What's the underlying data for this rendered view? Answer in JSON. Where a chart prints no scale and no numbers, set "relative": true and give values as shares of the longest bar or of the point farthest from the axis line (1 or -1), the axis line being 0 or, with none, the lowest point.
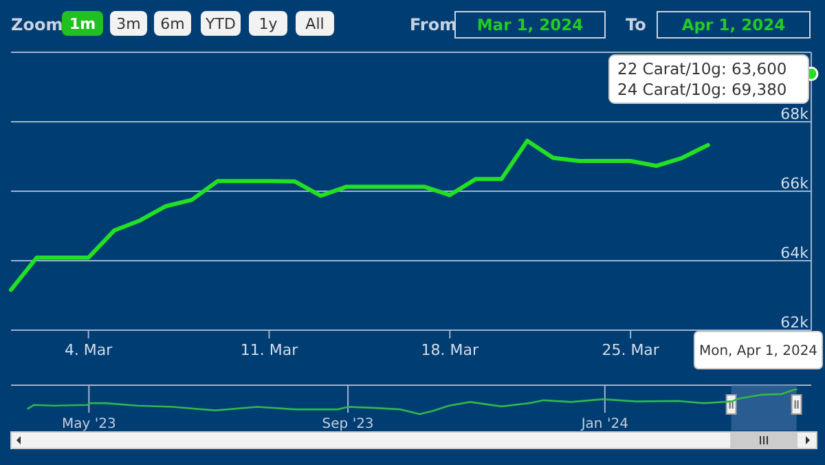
{
  "chart_data": [
    {
      "type": "line",
      "xlim": [
        "2024-03-01",
        "2024-04-01"
      ],
      "ylim": [
        62000,
        70000
      ],
      "x": [
        "2024-03-01",
        "2024-03-02",
        "2024-03-03",
        "2024-03-04",
        "2024-03-05",
        "2024-03-06",
        "2024-03-07",
        "2024-03-08",
        "2024-03-09",
        "2024-03-10",
        "2024-03-11",
        "2024-03-12",
        "2024-03-13",
        "2024-03-14",
        "2024-03-15",
        "2024-03-16",
        "2024-03-17",
        "2024-03-18",
        "2024-03-19",
        "2024-03-20",
        "2024-03-21",
        "2024-03-22",
        "2024-03-23",
        "2024-03-24",
        "2024-03-25",
        "2024-03-26",
        "2024-03-27",
        "2024-03-28",
        "2024-03-29",
        "2024-03-30",
        "2024-03-31",
        "2024-04-01"
      ],
      "series": [
        {
          "color": "#22e022",
          "values": [
            63160,
            64090,
            64090,
            64090,
            64870,
            65160,
            65570,
            65750,
            66290,
            66290,
            66290,
            66280,
            65870,
            66130,
            66130,
            66130,
            66130,
            65890,
            66350,
            66350,
            67450,
            66960,
            66870,
            66870,
            66870,
            66730,
            66960,
            67330,
            null,
            null,
            null,
            69380
          ]
        }
      ],
      "xticks": [
        {
          "value": "2024-03-04",
          "label": "4. Mar"
        },
        {
          "value": "2024-03-11",
          "label": "11. Mar"
        },
        {
          "value": "2024-03-18",
          "label": "18. Mar"
        },
        {
          "value": "2024-03-25",
          "label": "25. Mar"
        }
      ],
      "yticks": [
        {
          "value": 62000,
          "label": "62k"
        },
        {
          "value": 64000,
          "label": "64k"
        },
        {
          "value": 66000,
          "label": "66k"
        },
        {
          "value": 68000,
          "label": "68k"
        }
      ],
      "grid": "y",
      "legend": false,
      "marker": "none",
      "line_style": "solid",
      "annotations": [
        "Zoom",
        "1m",
        "3m",
        "6m",
        "YTD",
        "1y",
        "All",
        "From",
        "Mar 1, 2024",
        "To",
        "Apr 1, 2024",
        "22 Carat/10g: 63,600",
        {
          "text": "24 Carat/10g: 69,380",
          "x": "2024-04-01",
          "y": 69380
        },
        "Mon, Apr 1, 2024"
      ]
    },
    {
      "type": "line",
      "relative": true,
      "xlim": [
        "2023-03-25",
        "2024-04-08"
      ],
      "x": [
        "2023-04-02",
        "2023-04-05",
        "2023-04-14",
        "2023-04-30",
        "2023-05-02",
        "2023-05-09",
        "2023-05-24",
        "2023-06-10",
        "2023-06-30",
        "2023-07-20",
        "2023-08-07",
        "2023-08-27",
        "2023-09-01",
        "2023-09-11",
        "2023-09-26",
        "2023-10-05",
        "2023-10-11",
        "2023-10-19",
        "2023-10-29",
        "2023-11-13",
        "2023-11-26",
        "2023-12-03",
        "2023-12-16",
        "2023-12-31",
        "2024-01-16",
        "2024-02-05",
        "2024-02-17",
        "2024-03-01",
        "2024-03-05",
        "2024-03-15",
        "2024-03-25",
        "2024-03-30",
        "2024-04-01"
      ],
      "series": [
        {
          "color": "#2fb84a",
          "values": [
            0.22,
            0.37,
            0.34,
            0.37,
            0.44,
            0.44,
            0.34,
            0.29,
            0.15,
            0.29,
            0.19,
            0.19,
            0.29,
            0.26,
            0.19,
            0,
            0.12,
            0.34,
            0.49,
            0.31,
            0.44,
            0.56,
            0.49,
            0.6,
            0.51,
            0.53,
            0.44,
            0.51,
            0.63,
            0.78,
            0.81,
            0.96,
            1
          ]
        }
      ],
      "xticks": [
        {
          "value": "2023-05-01",
          "label": "May '23"
        },
        {
          "value": "2023-09-01",
          "label": "Sep '23"
        },
        {
          "value": "2024-01-01",
          "label": "Jan '24"
        }
      ],
      "grid": "x",
      "legend": false,
      "marker": "none",
      "bands": [
        {
          "axis": "x",
          "from": "2024-03-01",
          "to": "2024-04-01",
          "color": "#3a6a9c"
        }
      ]
    }
  ]
}
